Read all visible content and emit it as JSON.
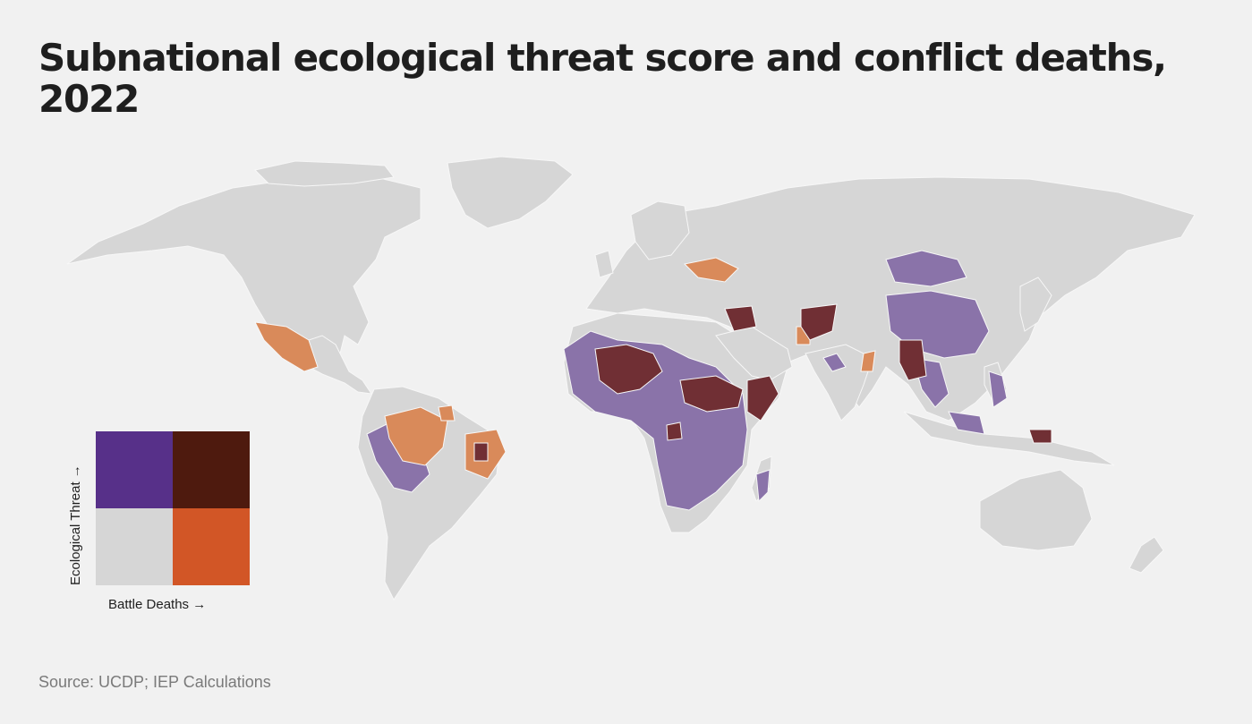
{
  "title": "Subnational ecological threat score and conflict deaths, 2022",
  "source": "Source: UCDP; IEP Calculations",
  "legend": {
    "y_axis_label": "Ecological Threat →",
    "x_axis_label": "Battle Deaths →",
    "cells": [
      {
        "name": "high-threat-low-deaths",
        "color": "#573089"
      },
      {
        "name": "high-threat-high-deaths",
        "color": "#4e1a0e"
      },
      {
        "name": "low-threat-low-deaths",
        "color": "#d6d6d6"
      },
      {
        "name": "low-threat-high-deaths",
        "color": "#d25626"
      }
    ]
  },
  "map_colors": {
    "base": "#d6d6d6",
    "ecological_threat": "#8a73a9",
    "battle_deaths": "#d98a5a",
    "both": "#702f34",
    "borders": "#f7f7f7"
  }
}
